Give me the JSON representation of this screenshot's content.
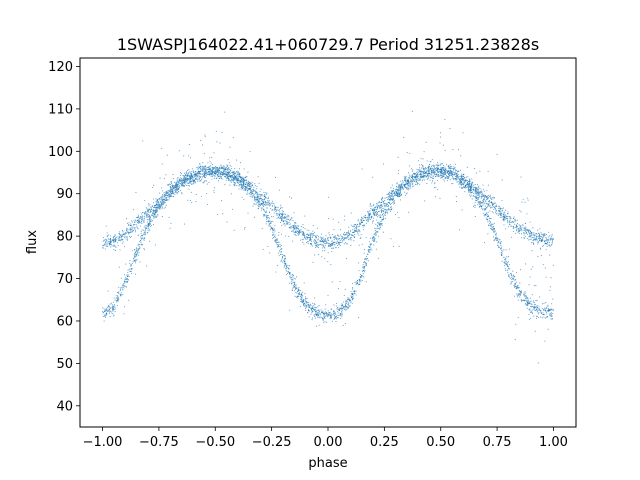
{
  "chart_data": {
    "type": "scatter",
    "title": "1SWASPJ164022.41+060729.7 Period 31251.23828s",
    "xlabel": "phase",
    "ylabel": "flux",
    "xlim": [
      -1.1,
      1.1
    ],
    "ylim": [
      35,
      122
    ],
    "xticks": [
      -1.0,
      -0.75,
      -0.5,
      -0.25,
      0.0,
      0.25,
      0.5,
      0.75,
      1.0
    ],
    "xtick_labels": [
      "−1.00",
      "−0.75",
      "−0.50",
      "−0.25",
      "0.00",
      "0.25",
      "0.50",
      "0.75",
      "1.00"
    ],
    "yticks": [
      40,
      50,
      60,
      70,
      80,
      90,
      100,
      110,
      120
    ],
    "ytick_labels": [
      "40",
      "50",
      "60",
      "70",
      "80",
      "90",
      "100",
      "110",
      "120"
    ],
    "grid": false,
    "marker_color": "#1f77b4",
    "series": [
      {
        "branch": "primary-eclipse",
        "description_of_shape": "deep minimum",
        "x": [
          -1.0,
          -0.95,
          -0.9,
          -0.85,
          -0.8,
          -0.75,
          -0.7,
          -0.65,
          -0.6,
          -0.55,
          -0.5,
          -0.45,
          -0.4,
          -0.35,
          -0.3,
          -0.25,
          -0.2,
          -0.15,
          -0.1,
          -0.05,
          0.0,
          0.05,
          0.1,
          0.15,
          0.2,
          0.25,
          0.3,
          0.35,
          0.4,
          0.45,
          0.5,
          0.55,
          0.6,
          0.65,
          0.7,
          0.75,
          0.8,
          0.85,
          0.9,
          0.95,
          1.0
        ],
        "y": [
          61.5,
          63.5,
          69,
          76,
          82.5,
          87,
          90.5,
          93,
          94.5,
          95.3,
          95.3,
          94.8,
          93.5,
          91,
          87.5,
          82,
          75,
          68.5,
          64,
          61.8,
          61.2,
          62,
          65,
          71,
          79,
          85.5,
          89.5,
          92.5,
          94.3,
          95.2,
          95.3,
          94.8,
          93,
          90,
          85.5,
          79,
          72,
          66.5,
          63.5,
          62.2,
          61.8
        ]
      },
      {
        "branch": "secondary-eclipse",
        "description_of_shape": "shallow minimum",
        "x": [
          -1.0,
          -0.95,
          -0.9,
          -0.85,
          -0.8,
          -0.75,
          -0.7,
          -0.65,
          -0.6,
          -0.55,
          -0.5,
          -0.45,
          -0.4,
          -0.35,
          -0.3,
          -0.25,
          -0.2,
          -0.15,
          -0.1,
          -0.05,
          0.0,
          0.05,
          0.1,
          0.15,
          0.2,
          0.25,
          0.3,
          0.35,
          0.4,
          0.45,
          0.5,
          0.55,
          0.6,
          0.65,
          0.7,
          0.75,
          0.8,
          0.85,
          0.9,
          0.95,
          1.0
        ],
        "y": [
          78.3,
          79,
          80.5,
          83,
          85.5,
          88,
          90.3,
          92.3,
          93.8,
          94.8,
          95.2,
          94.8,
          93.5,
          91.8,
          89.5,
          87,
          84.5,
          82,
          80,
          78.8,
          78.5,
          79,
          80.5,
          83,
          85.5,
          88,
          90.3,
          92.5,
          94,
          95,
          95.3,
          94.7,
          93.3,
          91.5,
          89,
          86.5,
          84,
          82,
          80.2,
          79,
          78.5
        ]
      }
    ]
  }
}
